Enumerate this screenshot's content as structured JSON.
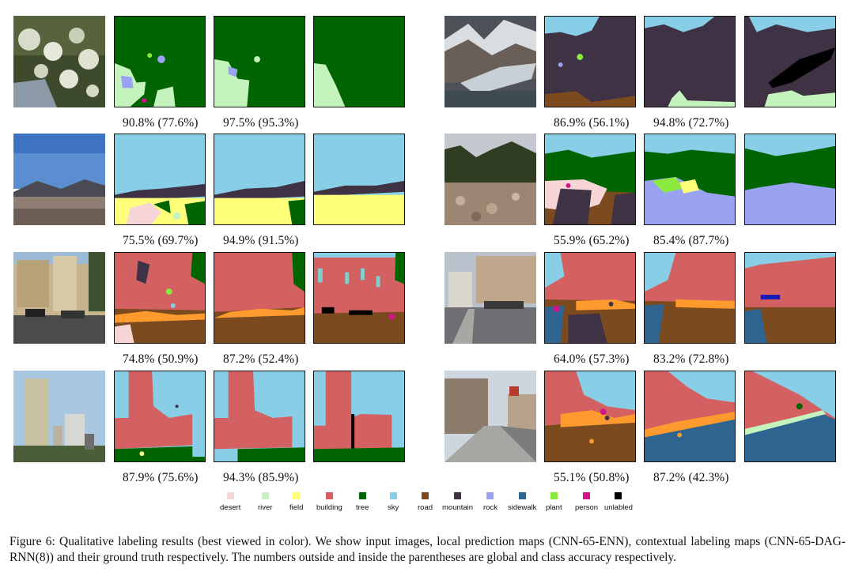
{
  "rows": [
    {
      "left": {
        "local": "90.8% (77.6%)",
        "context": "97.5% (95.3%)"
      },
      "right": {
        "local": "86.9% (56.1%)",
        "context": "94.8% (72.7%)"
      }
    },
    {
      "left": {
        "local": "75.5% (69.7%)",
        "context": "94.9% (91.5%)"
      },
      "right": {
        "local": "55.9% (65.2%)",
        "context": "85.4% (87.7%)"
      }
    },
    {
      "left": {
        "local": "74.8% (50.9%)",
        "context": "87.2% (52.4%)"
      },
      "right": {
        "local": "64.0% (57.3%)",
        "context": "83.2% (72.8%)"
      }
    },
    {
      "left": {
        "local": "87.9% (75.6%)",
        "context": "94.3% (85.9%)"
      },
      "right": {
        "local": "55.1% (50.8%)",
        "context": "87.2% (42.3%)"
      }
    }
  ],
  "legend": [
    {
      "label": "desert",
      "color": "#f7d4d6"
    },
    {
      "label": "river",
      "color": "#c5f3bd"
    },
    {
      "label": "field",
      "color": "#ffff7a"
    },
    {
      "label": "building",
      "color": "#d46161"
    },
    {
      "label": "tree",
      "color": "#006400"
    },
    {
      "label": "sky",
      "color": "#87cee6"
    },
    {
      "label": "road",
      "color": "#7b4b1f"
    },
    {
      "label": "mountain",
      "color": "#3e3244"
    },
    {
      "label": "rock",
      "color": "#9aa3f2"
    },
    {
      "label": "sidewalk",
      "color": "#2f6390"
    },
    {
      "label": "plant",
      "color": "#8bea3d"
    },
    {
      "label": "person",
      "color": "#d1148a"
    },
    {
      "label": "unlabled",
      "color": "#000000"
    }
  ],
  "caption": "Figure 6:  Qualitative labeling results (best viewed in color).  We show input images, local prediction maps (CNN-65-ENN), contextual labeling maps (CNN-65-DAG-RNN(8)) and their ground truth respectively. The numbers outside and inside the parentheses are global and class accuracy respectively."
}
